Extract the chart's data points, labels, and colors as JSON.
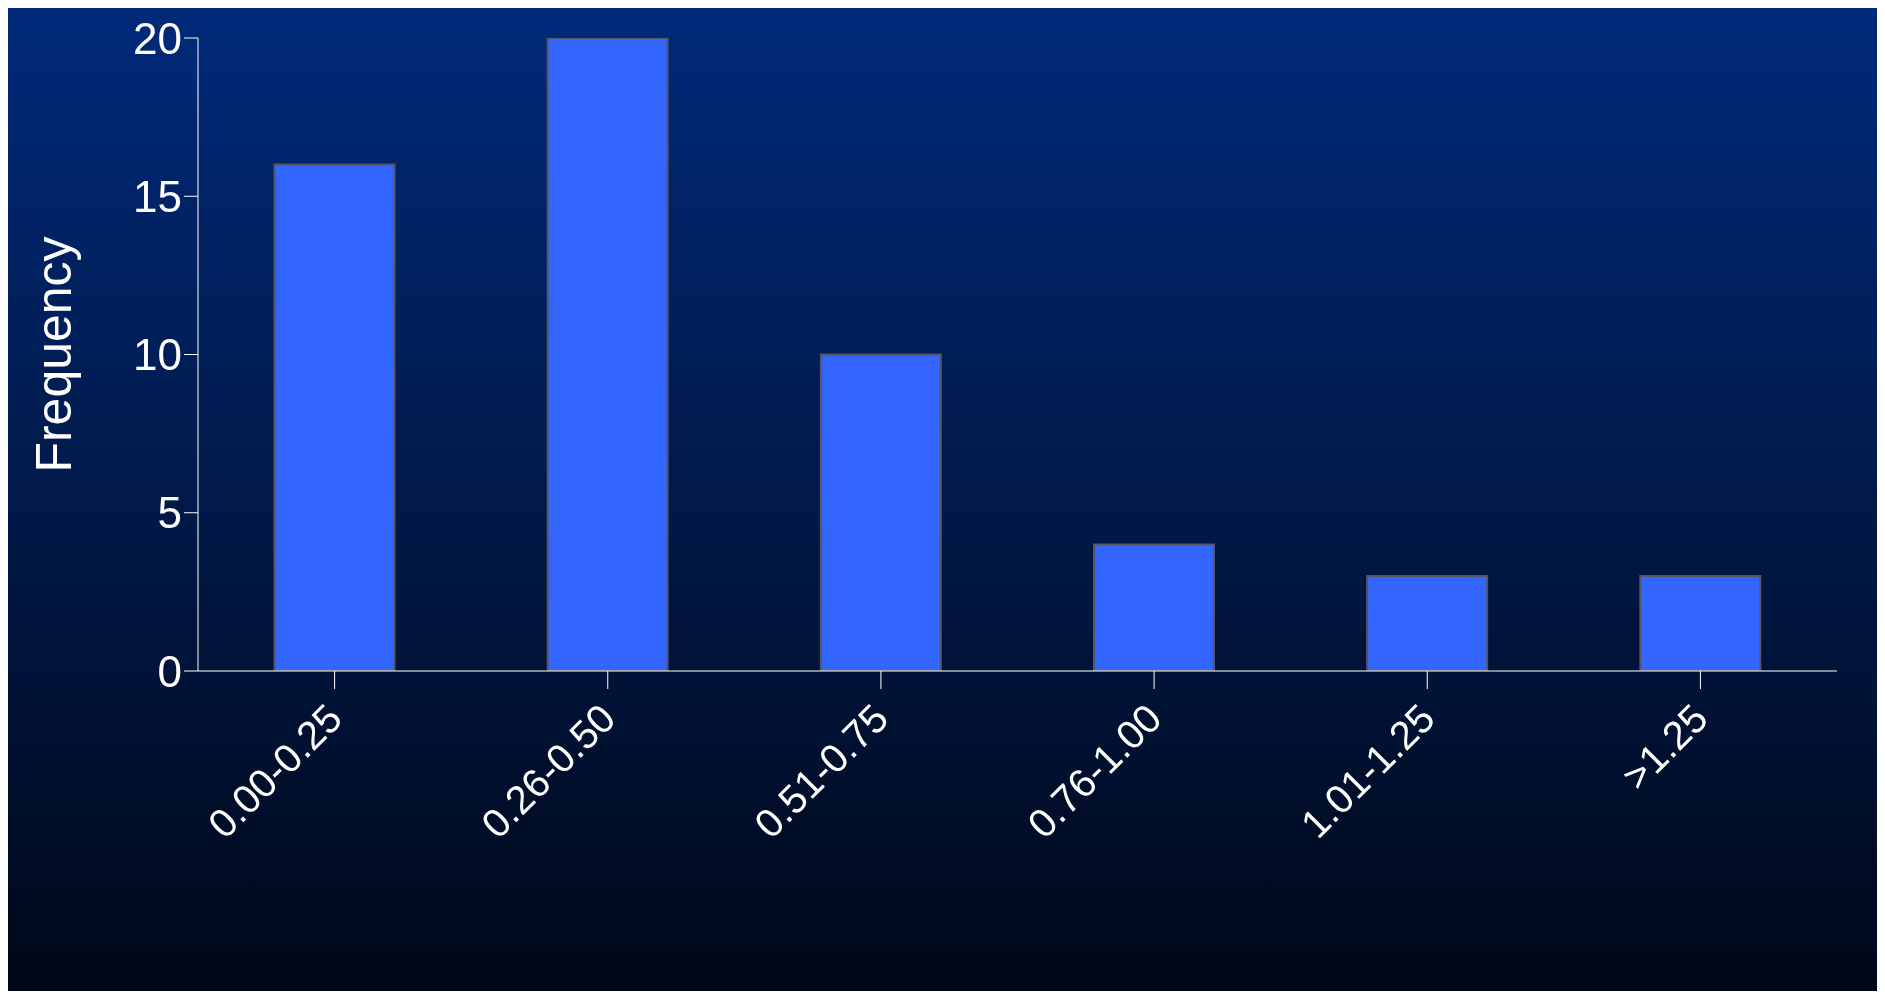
{
  "chart_data": {
    "type": "bar",
    "ylabel": "Frequency",
    "categories": [
      "0.00-0.25",
      "0.26-0.50",
      "0.51-0.75",
      "0.76-1.00",
      "1.01-1.25",
      ">1.25"
    ],
    "values": [
      16,
      20,
      10,
      4,
      3,
      3
    ],
    "color": "#3366ff",
    "ylim": [
      0,
      20
    ],
    "yticks": [
      0,
      5,
      10,
      15,
      20
    ],
    "grid": false
  }
}
